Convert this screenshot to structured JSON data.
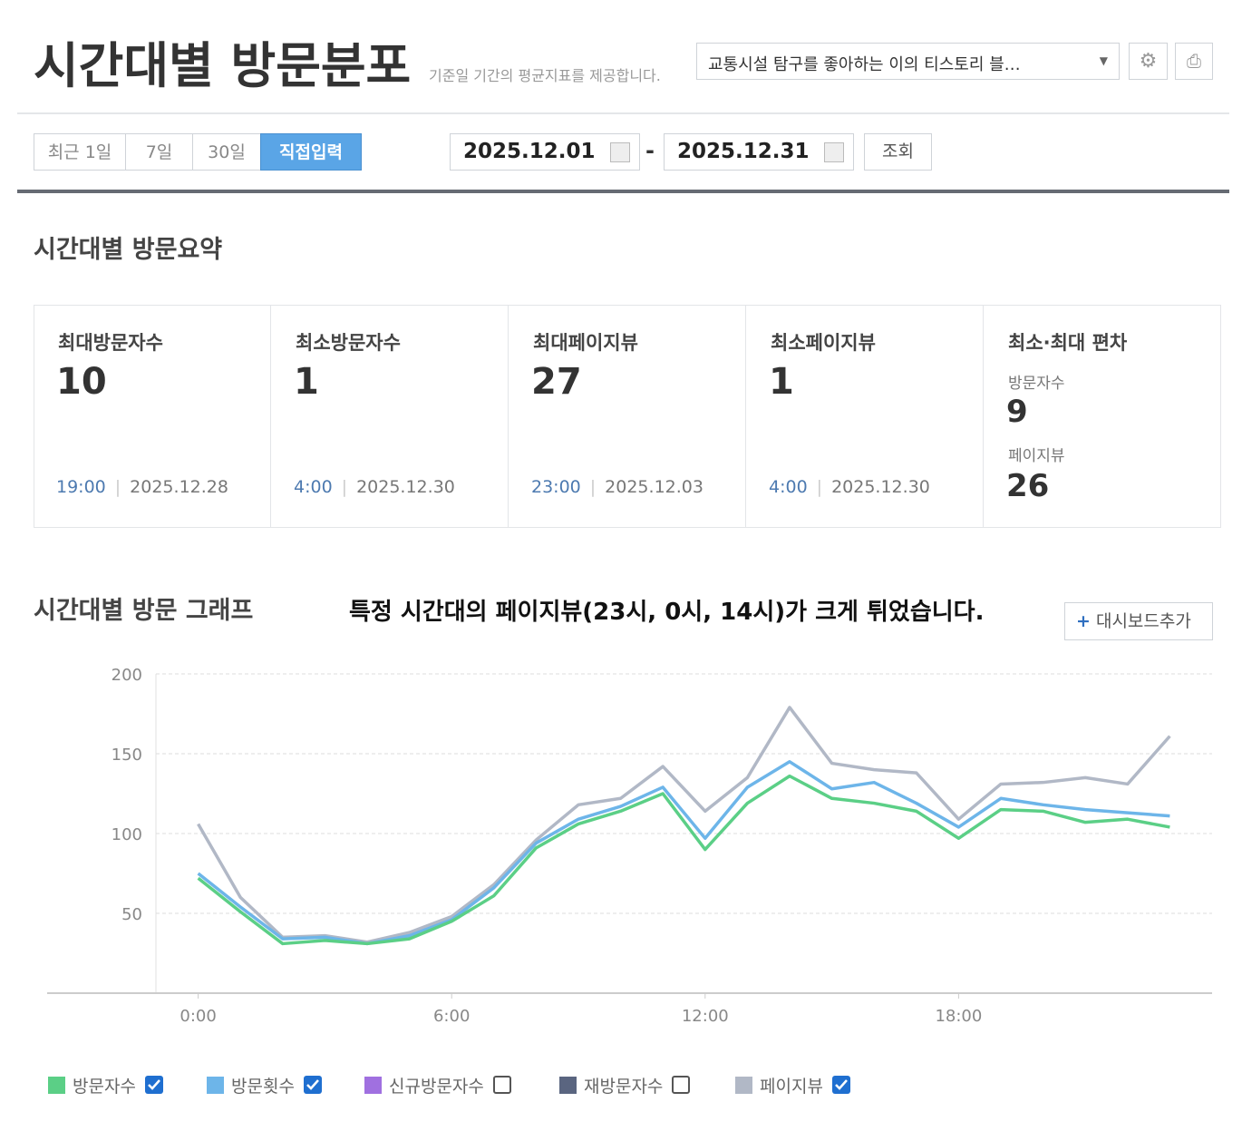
{
  "header": {
    "title": "시간대별 방문분포",
    "subtitle": "기준일 기간의 평균지표를 제공합니다.",
    "blog_select": "교통시설 탐구를 좋아하는 이의 티스토리 블…"
  },
  "toolbar": {
    "tabs": [
      "최근 1일",
      "7일",
      "30일",
      "직접입력"
    ],
    "active_tab": 3,
    "start_date": "2025.12.01",
    "separator": "-",
    "end_date": "2025.12.31",
    "search_button": "조회"
  },
  "summary": {
    "title": "시간대별 방문요약",
    "cards": [
      {
        "label": "최대방문자수",
        "value": 10,
        "time": "19:00",
        "date": "2025.12.28"
      },
      {
        "label": "최소방문자수",
        "value": 1,
        "time": "4:00",
        "date": "2025.12.30"
      },
      {
        "label": "최대페이지뷰",
        "value": 27,
        "time": "23:00",
        "date": "2025.12.03"
      },
      {
        "label": "최소페이지뷰",
        "value": 1,
        "time": "4:00",
        "date": "2025.12.30"
      }
    ],
    "deviation": {
      "label": "최소·최대 편차",
      "items": [
        {
          "label": "방문자수",
          "value": 9
        },
        {
          "label": "페이지뷰",
          "value": 26
        }
      ]
    }
  },
  "graph": {
    "title": "시간대별 방문 그래프",
    "annotation": "특정 시간대의 페이지뷰(23시, 0시, 14시)가 크게 튀었습니다.",
    "dashboard_button": "대시보드추가"
  },
  "chart_data": {
    "type": "line",
    "x": [
      0,
      1,
      2,
      3,
      4,
      5,
      6,
      7,
      8,
      9,
      10,
      11,
      12,
      13,
      14,
      15,
      16,
      17,
      18,
      19,
      20,
      21,
      22,
      23
    ],
    "xlim": [
      -1,
      24
    ],
    "xticks": [
      {
        "value": 0,
        "label": "0:00"
      },
      {
        "value": 6,
        "label": "6:00"
      },
      {
        "value": 12,
        "label": "12:00"
      },
      {
        "value": 18,
        "label": "18:00"
      }
    ],
    "ylim": [
      0,
      200
    ],
    "yticks": [
      50,
      100,
      150,
      200
    ],
    "grid": true,
    "series": [
      {
        "name": "방문자수",
        "color": "#5bcf86",
        "checked": true,
        "values": [
          72,
          51,
          31,
          33,
          31,
          34,
          45,
          61,
          91,
          106,
          114,
          125,
          90,
          119,
          136,
          122,
          119,
          114,
          97,
          115,
          114,
          107,
          109,
          104
        ]
      },
      {
        "name": "방문횟수",
        "color": "#6db5e9",
        "checked": true,
        "values": [
          75,
          54,
          34,
          35,
          31,
          36,
          46,
          66,
          94,
          109,
          117,
          129,
          97,
          129,
          145,
          128,
          132,
          119,
          104,
          122,
          118,
          115,
          113,
          111
        ]
      },
      {
        "name": "페이지뷰",
        "color": "#b1b8c6",
        "checked": true,
        "values": [
          106,
          60,
          35,
          36,
          32,
          38,
          48,
          68,
          96,
          118,
          122,
          142,
          114,
          135,
          179,
          144,
          140,
          138,
          109,
          131,
          132,
          135,
          131,
          161
        ]
      }
    ],
    "hidden_series": [
      {
        "name": "신규방문자수",
        "color": "#a070e0",
        "checked": false
      },
      {
        "name": "재방문자수",
        "color": "#5a6580",
        "checked": false
      }
    ]
  }
}
